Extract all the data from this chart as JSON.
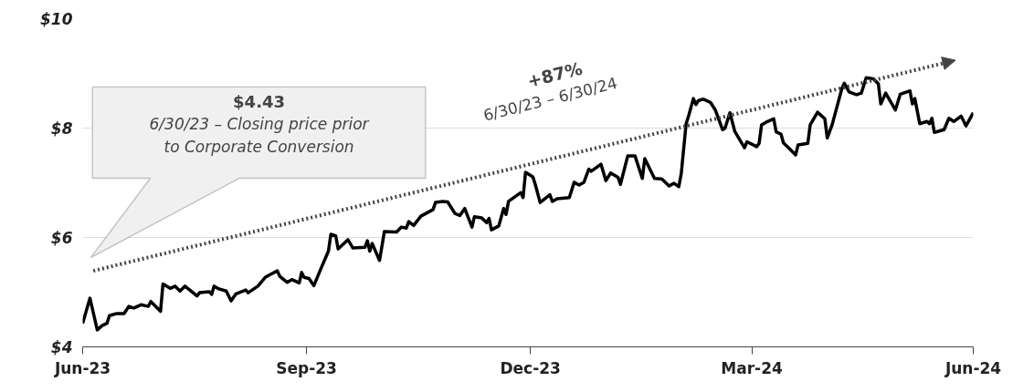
{
  "chart_data": {
    "type": "line",
    "grid": "y",
    "line_style": "solid",
    "marker": "none",
    "xlim": [
      "2023-06-30",
      "2024-06-30"
    ],
    "xticks": [
      {
        "value": "2023-06-30",
        "label": "Jun-23"
      },
      {
        "value": "2023-09-30",
        "label": "Sep-23"
      },
      {
        "value": "2023-12-31",
        "label": "Dec-23"
      },
      {
        "value": "2024-03-31",
        "label": "Mar-24"
      },
      {
        "value": "2024-06-30",
        "label": "Jun-24"
      }
    ],
    "ylim": [
      4,
      10
    ],
    "yticks": [
      {
        "value": 4,
        "label": "$4"
      },
      {
        "value": 6,
        "label": "$6"
      },
      {
        "value": 8,
        "label": "$8"
      },
      {
        "value": 10,
        "label": "$10"
      }
    ],
    "annotations": [
      "$4.43",
      "6/30/23 – Closing price prior to Corporate Conversion",
      "+87%",
      "6/30/23 – 6/30/24"
    ],
    "series": [
      {
        "color": "#000000",
        "x": [
          "2023-06-30",
          "2023-07-03",
          "2023-07-06",
          "2023-07-08",
          "2023-07-10",
          "2023-07-11",
          "2023-07-14",
          "2023-07-17",
          "2023-07-19",
          "2023-07-21",
          "2023-07-24",
          "2023-07-27",
          "2023-07-28",
          "2023-08-01",
          "2023-08-02",
          "2023-08-05",
          "2023-08-07",
          "2023-08-09",
          "2023-08-11",
          "2023-08-13",
          "2023-08-16",
          "2023-08-17",
          "2023-08-21",
          "2023-08-22",
          "2023-08-23",
          "2023-08-25",
          "2023-08-28",
          "2023-08-30",
          "2023-09-01",
          "2023-09-05",
          "2023-09-06",
          "2023-09-10",
          "2023-09-13",
          "2023-09-15",
          "2023-09-18",
          "2023-09-19",
          "2023-09-22",
          "2023-09-24",
          "2023-09-27",
          "2023-09-28",
          "2023-09-29",
          "2023-10-01",
          "2023-10-03",
          "2023-10-06",
          "2023-10-09",
          "2023-10-10",
          "2023-10-12",
          "2023-10-13",
          "2023-10-17",
          "2023-10-19",
          "2023-10-24",
          "2023-10-25",
          "2023-10-26",
          "2023-10-27",
          "2023-10-30",
          "2023-11-01",
          "2023-11-06",
          "2023-11-08",
          "2023-11-10",
          "2023-11-11",
          "2023-11-13",
          "2023-11-16",
          "2023-11-21",
          "2023-11-22",
          "2023-11-25",
          "2023-11-27",
          "2023-11-30",
          "2023-12-02",
          "2023-12-04",
          "2023-12-07",
          "2023-12-08",
          "2023-12-11",
          "2023-12-13",
          "2023-12-14",
          "2023-12-15",
          "2023-12-18",
          "2023-12-20",
          "2023-12-21",
          "2023-12-22",
          "2023-12-27",
          "2023-12-28",
          "2023-12-29",
          "2024-01-01",
          "2024-01-02",
          "2024-01-04",
          "2024-01-08",
          "2024-01-09",
          "2024-01-11",
          "2024-01-16",
          "2024-01-18",
          "2024-01-20",
          "2024-01-22",
          "2024-01-24",
          "2024-01-25",
          "2024-01-29",
          "2024-01-31",
          "2024-02-02",
          "2024-02-05",
          "2024-02-06",
          "2024-02-09",
          "2024-02-12",
          "2024-02-15",
          "2024-02-16",
          "2024-02-20",
          "2024-02-23",
          "2024-02-26",
          "2024-02-28",
          "2024-03-01",
          "2024-03-02",
          "2024-03-04",
          "2024-03-05",
          "2024-03-07",
          "2024-03-08",
          "2024-03-09",
          "2024-03-11",
          "2024-03-14",
          "2024-03-16",
          "2024-03-19",
          "2024-03-20",
          "2024-03-22",
          "2024-03-24",
          "2024-03-28",
          "2024-03-29",
          "2024-04-02",
          "2024-04-03",
          "2024-04-04",
          "2024-04-06",
          "2024-04-09",
          "2024-04-10",
          "2024-04-12",
          "2024-04-13",
          "2024-04-16",
          "2024-04-18",
          "2024-04-19",
          "2024-04-23",
          "2024-04-24",
          "2024-04-27",
          "2024-04-30",
          "2024-05-01",
          "2024-05-03",
          "2024-05-07",
          "2024-05-08",
          "2024-05-10",
          "2024-05-13",
          "2024-05-15",
          "2024-05-17",
          "2024-05-20",
          "2024-05-22",
          "2024-05-23",
          "2024-05-25",
          "2024-05-29",
          "2024-05-31",
          "2024-06-04",
          "2024-06-05",
          "2024-06-06",
          "2024-06-08",
          "2024-06-11",
          "2024-06-12",
          "2024-06-13",
          "2024-06-14",
          "2024-06-18",
          "2024-06-20",
          "2024-06-22",
          "2024-06-25",
          "2024-06-27",
          "2024-06-30"
        ],
        "values": [
          4.43,
          4.89,
          4.31,
          4.39,
          4.43,
          4.57,
          4.61,
          4.61,
          4.74,
          4.71,
          4.77,
          4.74,
          4.83,
          4.65,
          5.15,
          5.07,
          5.11,
          5.02,
          5.11,
          5.04,
          4.93,
          4.99,
          5.01,
          4.96,
          5.11,
          5.06,
          5.02,
          4.84,
          4.97,
          5.04,
          4.99,
          5.11,
          5.27,
          5.32,
          5.39,
          5.29,
          5.18,
          5.23,
          5.17,
          5.36,
          5.27,
          5.25,
          5.12,
          5.44,
          5.75,
          6.06,
          6.03,
          5.79,
          5.96,
          5.81,
          5.82,
          5.94,
          5.75,
          5.89,
          5.58,
          6.11,
          6.1,
          6.19,
          6.17,
          6.29,
          6.22,
          6.39,
          6.51,
          6.64,
          6.66,
          6.65,
          6.44,
          6.4,
          6.53,
          6.19,
          6.38,
          6.36,
          6.27,
          6.35,
          6.14,
          6.21,
          6.53,
          6.42,
          6.66,
          6.82,
          6.73,
          7.19,
          7.11,
          6.97,
          6.64,
          6.78,
          6.66,
          6.71,
          6.73,
          7.01,
          6.96,
          7.01,
          7.25,
          7.21,
          7.34,
          7.04,
          7.18,
          7.1,
          6.97,
          7.49,
          7.49,
          7.08,
          7.44,
          7.08,
          7.07,
          6.94,
          6.99,
          6.93,
          7.17,
          8.08,
          8.22,
          8.54,
          8.43,
          8.5,
          8.53,
          8.47,
          8.33,
          7.97,
          8.0,
          8.28,
          7.94,
          7.64,
          7.75,
          7.66,
          7.72,
          8.06,
          8.11,
          8.17,
          7.93,
          7.89,
          7.73,
          7.6,
          7.51,
          7.69,
          7.72,
          8.06,
          8.29,
          8.17,
          7.82,
          8.06,
          8.72,
          8.82,
          8.66,
          8.61,
          8.64,
          8.92,
          8.9,
          8.81,
          8.44,
          8.64,
          8.33,
          8.62,
          8.68,
          8.44,
          8.54,
          8.08,
          8.12,
          8.08,
          8.18,
          7.92,
          7.97,
          8.18,
          8.12,
          8.22,
          8.04,
          8.28
        ]
      }
    ]
  }
}
